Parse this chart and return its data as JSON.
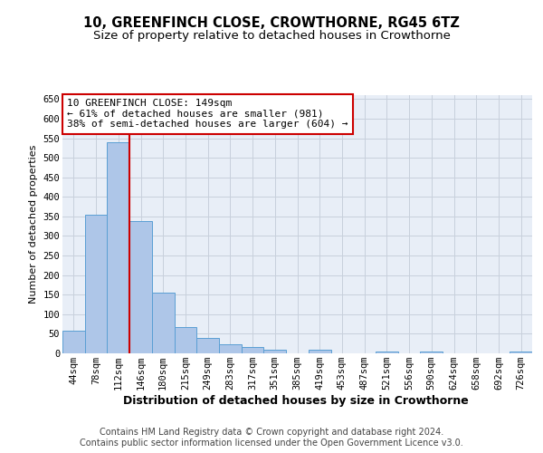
{
  "title": "10, GREENFINCH CLOSE, CROWTHORNE, RG45 6TZ",
  "subtitle": "Size of property relative to detached houses in Crowthorne",
  "xlabel": "Distribution of detached houses by size in Crowthorne",
  "ylabel": "Number of detached properties",
  "bar_labels": [
    "44sqm",
    "78sqm",
    "112sqm",
    "146sqm",
    "180sqm",
    "215sqm",
    "249sqm",
    "283sqm",
    "317sqm",
    "351sqm",
    "385sqm",
    "419sqm",
    "453sqm",
    "487sqm",
    "521sqm",
    "556sqm",
    "590sqm",
    "624sqm",
    "658sqm",
    "692sqm",
    "726sqm"
  ],
  "bar_values": [
    57,
    355,
    540,
    337,
    155,
    68,
    40,
    23,
    16,
    10,
    0,
    9,
    0,
    0,
    4,
    0,
    4,
    0,
    0,
    0,
    4
  ],
  "bar_color": "#aec6e8",
  "bar_edge_color": "#5a9fd4",
  "vline_color": "#cc0000",
  "annotation_text": "10 GREENFINCH CLOSE: 149sqm\n← 61% of detached houses are smaller (981)\n38% of semi-detached houses are larger (604) →",
  "annotation_box_color": "#ffffff",
  "annotation_box_edge_color": "#cc0000",
  "background_color": "#ffffff",
  "plot_bg_color": "#e8eef7",
  "grid_color": "#c8d0dc",
  "ylim": [
    0,
    660
  ],
  "yticks": [
    0,
    50,
    100,
    150,
    200,
    250,
    300,
    350,
    400,
    450,
    500,
    550,
    600,
    650
  ],
  "footer_text": "Contains HM Land Registry data © Crown copyright and database right 2024.\nContains public sector information licensed under the Open Government Licence v3.0.",
  "title_fontsize": 10.5,
  "subtitle_fontsize": 9.5,
  "xlabel_fontsize": 9,
  "ylabel_fontsize": 8,
  "tick_fontsize": 7.5,
  "annotation_fontsize": 8,
  "footer_fontsize": 7
}
